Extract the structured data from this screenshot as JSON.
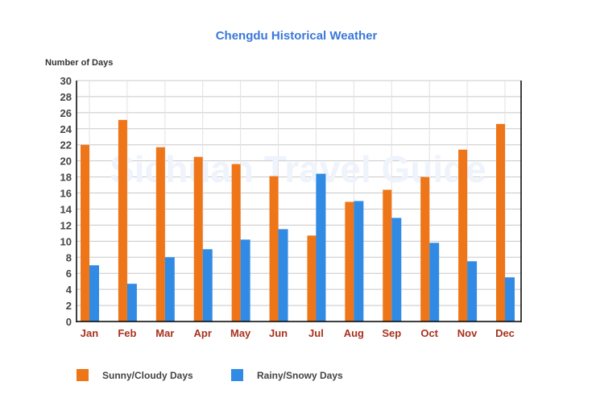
{
  "chart_data": {
    "type": "bar",
    "title": "Chengdu Historical Weather",
    "ylabel": "Number of Days",
    "xlabel": "",
    "watermark": "Sichuan Travel Guide",
    "ylim": [
      0,
      30
    ],
    "yticks": [
      0,
      2,
      4,
      6,
      8,
      10,
      12,
      14,
      16,
      18,
      20,
      22,
      24,
      26,
      28,
      30
    ],
    "categories": [
      "Jan",
      "Feb",
      "Mar",
      "Apr",
      "May",
      "Jun",
      "Jul",
      "Aug",
      "Sep",
      "Oct",
      "Nov",
      "Dec"
    ],
    "series": [
      {
        "name": "Sunny/Cloudy Days",
        "color": "#ee7518",
        "values": [
          22,
          25.1,
          21.7,
          20.5,
          19.6,
          18.1,
          10.7,
          14.9,
          16.4,
          18,
          21.4,
          24.6
        ]
      },
      {
        "name": "Rainy/Snowy Days",
        "color": "#318be4",
        "values": [
          7,
          4.7,
          8,
          9,
          10.2,
          11.5,
          18.4,
          15,
          12.9,
          9.8,
          7.5,
          5.5
        ]
      }
    ],
    "legend": "bottom-left",
    "grid": true
  }
}
